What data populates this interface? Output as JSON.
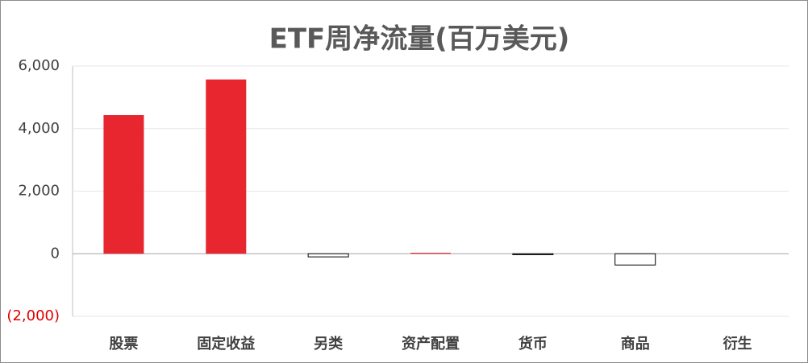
{
  "chart_data": {
    "type": "bar",
    "title": "ETF周净流量(百万美元)",
    "categories": [
      "股票",
      "固定收益",
      "另类",
      "资产配置",
      "货币",
      "商品",
      "衍生"
    ],
    "values": [
      4430,
      5570,
      -100,
      30,
      -30,
      -360,
      0
    ],
    "color": "#e8262f",
    "negative_color": "#ffffff",
    "negative_stroke": "#000000",
    "ylim": [
      -2000,
      6000
    ],
    "yticks": [
      {
        "value": -2000,
        "label": "(2,000)"
      },
      0,
      {
        "value": 2000,
        "label": "2,000"
      },
      {
        "value": 4000,
        "label": "4,000"
      },
      {
        "value": 6000,
        "label": "6,000"
      }
    ],
    "negative_tick_color": "#e00000",
    "grid": true
  }
}
